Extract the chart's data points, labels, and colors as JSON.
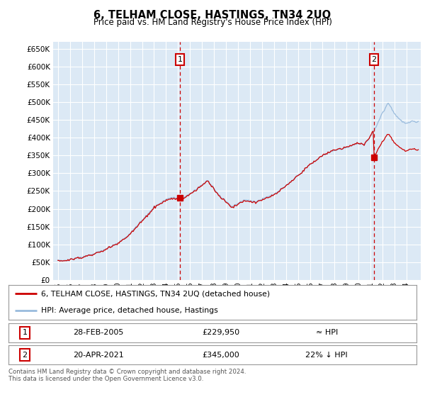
{
  "title": "6, TELHAM CLOSE, HASTINGS, TN34 2UQ",
  "subtitle": "Price paid vs. HM Land Registry's House Price Index (HPI)",
  "background_color": "#ffffff",
  "plot_bg_color": "#dce9f5",
  "grid_color": "#ffffff",
  "house_line_color": "#cc0000",
  "hpi_line_color": "#99bbdd",
  "ylim": [
    0,
    670000
  ],
  "yticks": [
    0,
    50000,
    100000,
    150000,
    200000,
    250000,
    300000,
    350000,
    400000,
    450000,
    500000,
    550000,
    600000,
    650000
  ],
  "purchase1_date": 2005.15,
  "purchase1_price": 229950,
  "purchase1_label": "1",
  "purchase2_date": 2021.3,
  "purchase2_price": 345000,
  "purchase2_label": "2",
  "footnote": "Contains HM Land Registry data © Crown copyright and database right 2024.\nThis data is licensed under the Open Government Licence v3.0.",
  "legend_house": "6, TELHAM CLOSE, HASTINGS, TN34 2UQ (detached house)",
  "legend_hpi": "HPI: Average price, detached house, Hastings",
  "table_row1": [
    "1",
    "28-FEB-2005",
    "£229,950",
    "≈ HPI"
  ],
  "table_row2": [
    "2",
    "20-APR-2021",
    "£345,000",
    "22% ↓ HPI"
  ]
}
